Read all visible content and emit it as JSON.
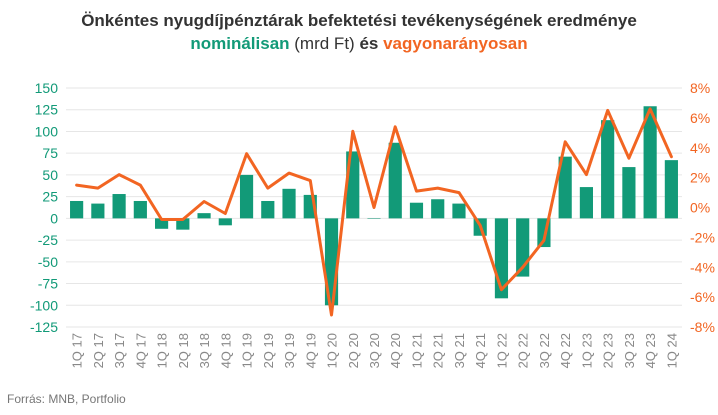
{
  "title": "Önkéntes nyugdíjpénztárak befektetési tevékenységének eredménye",
  "subtitle": {
    "part1": "nominálisan",
    "part2": " (mrd Ft) ",
    "part3": "és ",
    "part4": "vagyonarányosan"
  },
  "source": "Forrás: MNB, Portfolio",
  "colors": {
    "bar": "#129a78",
    "line": "#f26522",
    "left_axis": "#129a78",
    "right_axis": "#f26522",
    "grid": "#e6e6e6",
    "text": "#333333",
    "tick": "#888888"
  },
  "chart_data": {
    "type": "bar",
    "categories": [
      "1Q 17",
      "2Q 17",
      "3Q 17",
      "4Q 17",
      "1Q 18",
      "2Q 18",
      "3Q 18",
      "4Q 18",
      "1Q 19",
      "2Q 19",
      "3Q 19",
      "4Q 19",
      "1Q 20",
      "2Q 20",
      "3Q 20",
      "4Q 20",
      "1Q 21",
      "2Q 21",
      "3Q 21",
      "4Q 21",
      "1Q 22",
      "2Q 22",
      "3Q 22",
      "4Q 22",
      "1Q 23",
      "2Q 23",
      "3Q 23",
      "4Q 23",
      "1Q 24"
    ],
    "series": [
      {
        "type": "bar",
        "axis": "left",
        "values": [
          20,
          17,
          28,
          20,
          -12,
          -13,
          6,
          -8,
          50,
          20,
          34,
          27,
          -100,
          77,
          0,
          87,
          18,
          22,
          17,
          -20,
          -92,
          -67,
          -33,
          71,
          36,
          113,
          59,
          129,
          67
        ]
      },
      {
        "type": "line",
        "axis": "right",
        "values": [
          1.5,
          1.3,
          2.2,
          1.5,
          -0.8,
          -0.8,
          0.4,
          -0.4,
          3.6,
          1.3,
          2.3,
          1.8,
          -7.2,
          5.1,
          0.0,
          5.4,
          1.1,
          1.3,
          1.0,
          -1.2,
          -5.5,
          -4.0,
          -2.2,
          4.4,
          2.2,
          6.5,
          3.3,
          6.6,
          3.4
        ]
      }
    ],
    "yleft": {
      "ylim": [
        -125,
        150
      ],
      "ticks": [
        "150",
        "125",
        "100",
        "75",
        "50",
        "25",
        "0",
        "-25",
        "-50",
        "-75",
        "-100",
        "-125"
      ]
    },
    "yright": {
      "ylim": [
        -8,
        8
      ],
      "ticks": [
        "8%",
        "6%",
        "4%",
        "2%",
        "0%",
        "-2%",
        "-4%",
        "-6%",
        "-8%"
      ]
    },
    "grid": true
  }
}
